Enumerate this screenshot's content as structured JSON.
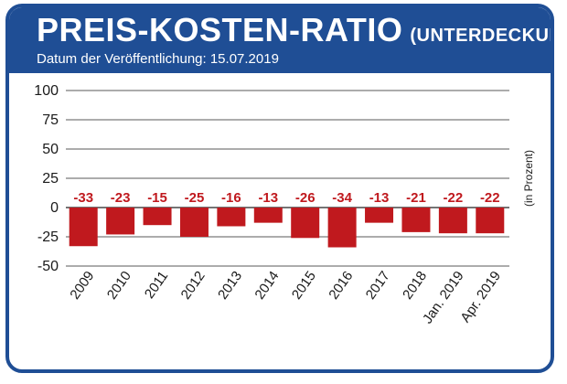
{
  "header": {
    "title": "PREIS-KOSTEN-RATIO",
    "title_suffix": "(UNTERDECKUNG)",
    "subtitle": "Datum der Veröffentlichung: 15.07.2019"
  },
  "colors": {
    "brand_blue": "#1f4e95",
    "bar_red": "#c0191e",
    "label_red": "#c0191e"
  },
  "chart_data": {
    "type": "bar",
    "title": "PREIS-KOSTEN-RATIO (UNTERDECKUNG)",
    "subtitle": "Datum der Veröffentlichung: 15.07.2019",
    "categories": [
      "2009",
      "2010",
      "2011",
      "2012",
      "2013",
      "2014",
      "2015",
      "2016",
      "2017",
      "2018",
      "Jan. 2019",
      "Apr. 2019"
    ],
    "values": [
      -33,
      -23,
      -15,
      -25,
      -16,
      -13,
      -26,
      -34,
      -13,
      -21,
      -22,
      -22
    ],
    "data_labels": [
      "-33",
      "-23",
      "-15",
      "-25",
      "-16",
      "-13",
      "-26",
      "-34",
      "-13",
      "-21",
      "-22",
      "-22"
    ],
    "yticks": [
      100,
      75,
      50,
      25,
      0,
      -25,
      -50
    ],
    "ytick_labels": [
      "100",
      "75",
      "50",
      "25",
      "0",
      "-25",
      "-50"
    ],
    "ylim": [
      -50,
      100
    ],
    "ylabel": "(in Prozent)",
    "xlabel": "",
    "grid": true,
    "legend": "none"
  }
}
